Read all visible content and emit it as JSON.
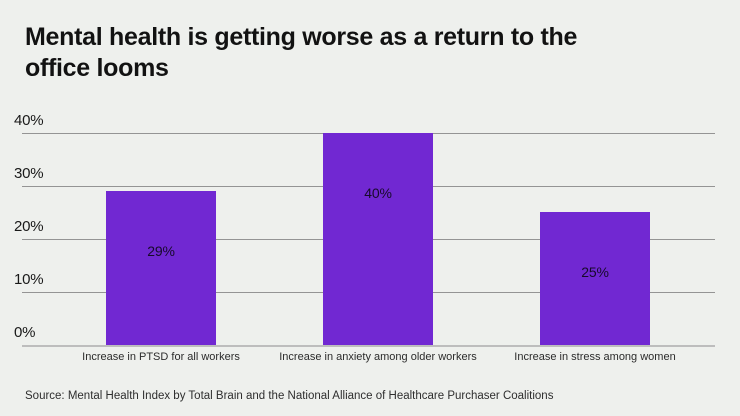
{
  "page": {
    "background_color": "#eef0ed",
    "title": "Mental health is getting worse as a return to the office looms",
    "title_lines": [
      "Mental health is getting worse as a return to the",
      "office looms"
    ],
    "source": "Source: Mental Health Index by Total Brain and the National Alliance of Healthcare Purchaser Coalitions"
  },
  "chart_data": {
    "type": "bar",
    "title": "Mental health is getting worse as a return to the office looms",
    "categories": [
      "Increase in PTSD for all workers",
      "Increase in anxiety among older workers",
      "Increase in stress among women"
    ],
    "values": [
      29,
      40,
      25
    ],
    "value_labels": [
      "29%",
      "40%",
      "25%"
    ],
    "y_ticks": [
      "0%",
      "10%",
      "20%",
      "30%",
      "40%"
    ],
    "y_tick_values": [
      0,
      10,
      20,
      30,
      40
    ],
    "ylim": [
      0,
      40
    ],
    "xlabel": "",
    "ylabel": "",
    "grid": "horizontal-only",
    "legend": "none",
    "bar_color": "#7128d2",
    "value_label_color": "#170a2b",
    "gridline_color": "#949494",
    "baseline_color": "#bdbdbd",
    "source": "Source: Mental Health Index by Total Brain and the National Alliance of Healthcare Purchaser Coalitions"
  }
}
